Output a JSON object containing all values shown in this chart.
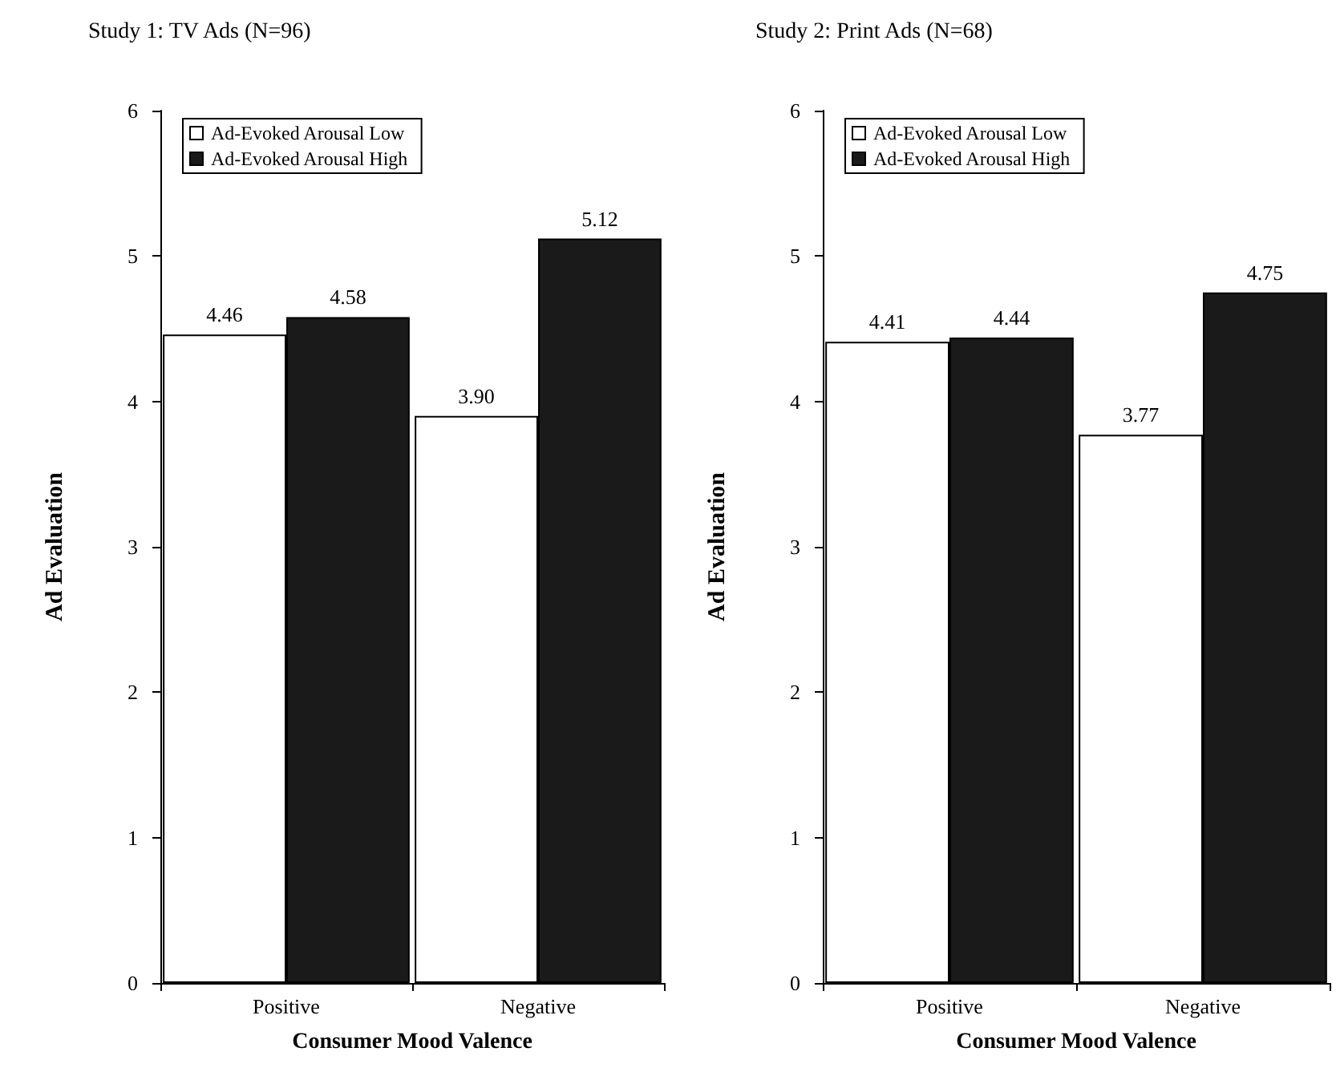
{
  "chart_data": [
    {
      "type": "bar",
      "title": "Study 1: TV Ads (N=96)",
      "xlabel": "Consumer Mood Valence",
      "ylabel": "Ad Evaluation",
      "categories": [
        "Positive",
        "Negative"
      ],
      "ylim": [
        0,
        6
      ],
      "yticks": [
        0,
        1,
        2,
        3,
        4,
        5,
        6
      ],
      "grid": false,
      "legend": "top left",
      "series": [
        {
          "name": "Ad-Evoked Arousal Low",
          "color": "#ffffff",
          "values": [
            4.46,
            3.9
          ],
          "value_labels": [
            "4.46",
            "3.90"
          ]
        },
        {
          "name": "Ad-Evoked Arousal High",
          "color": "#1a1a1a",
          "values": [
            4.58,
            5.12
          ],
          "value_labels": [
            "4.58",
            "5.12"
          ]
        }
      ]
    },
    {
      "type": "bar",
      "title": "Study 2: Print Ads (N=68)",
      "xlabel": "Consumer Mood Valence",
      "ylabel": "Ad Evaluation",
      "categories": [
        "Positive",
        "Negative"
      ],
      "ylim": [
        0,
        6
      ],
      "yticks": [
        0,
        1,
        2,
        3,
        4,
        5,
        6
      ],
      "grid": false,
      "legend": "top left",
      "series": [
        {
          "name": "Ad-Evoked Arousal Low",
          "color": "#ffffff",
          "values": [
            4.41,
            3.77
          ],
          "value_labels": [
            "4.41",
            "3.77"
          ]
        },
        {
          "name": "Ad-Evoked Arousal High",
          "color": "#1a1a1a",
          "values": [
            4.44,
            4.75
          ],
          "value_labels": [
            "4.44",
            "4.75"
          ]
        }
      ]
    }
  ]
}
